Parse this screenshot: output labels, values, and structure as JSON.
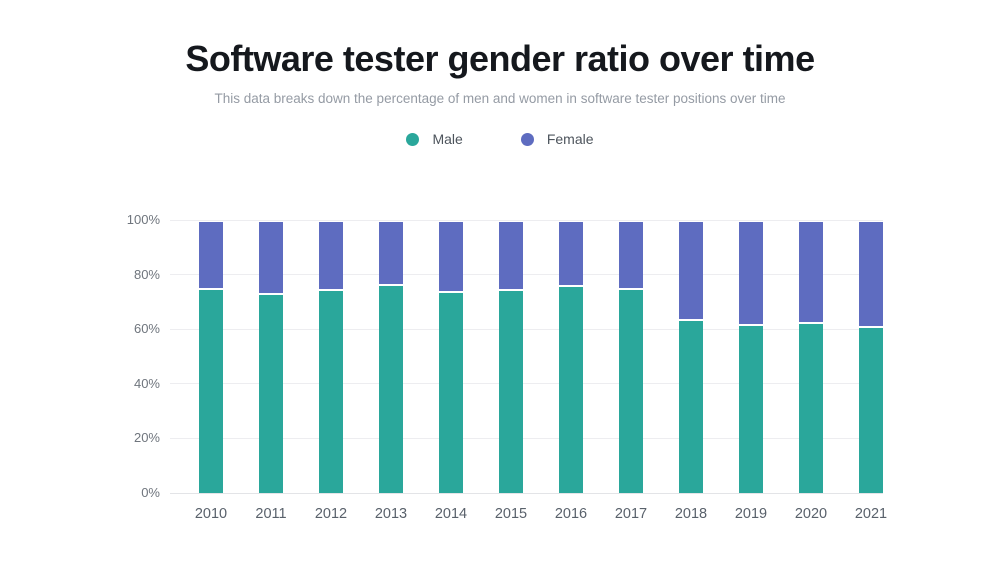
{
  "title": "Software tester gender ratio over time",
  "subtitle": "This data breaks down the percentage of men and women in software tester positions over time",
  "legend": {
    "items": [
      {
        "label": "Male",
        "color": "#2aa79b"
      },
      {
        "label": "Female",
        "color": "#5e6cc0"
      }
    ]
  },
  "chart_data": {
    "type": "bar",
    "stacked": true,
    "title": "Software tester gender ratio over time",
    "subtitle": "This data breaks down the percentage of men and women in software tester positions over time",
    "categories": [
      "2010",
      "2011",
      "2012",
      "2013",
      "2014",
      "2015",
      "2016",
      "2017",
      "2018",
      "2019",
      "2020",
      "2021"
    ],
    "series": [
      {
        "name": "Male",
        "color": "#2aa79b",
        "values": [
          75.5,
          73.5,
          75,
          77,
          74.5,
          75,
          76.5,
          75.5,
          64,
          62,
          63,
          61.5
        ]
      },
      {
        "name": "Female",
        "color": "#5e6cc0",
        "values": [
          24.5,
          26.5,
          25,
          23,
          25.5,
          25,
          23.5,
          24.5,
          36,
          38,
          37,
          38.5
        ]
      }
    ],
    "xlabel": "",
    "ylabel": "",
    "ylim": [
      0,
      100
    ],
    "y_ticks": [
      "0%",
      "20%",
      "40%",
      "60%",
      "80%",
      "100%"
    ],
    "grid": true,
    "legend_position": "top",
    "colors": {
      "background": "#ffffff",
      "title_text": "#15181d",
      "subtitle_text": "#959ba4",
      "axis_text": "#6f757d",
      "gridline": "#ededf0"
    }
  }
}
